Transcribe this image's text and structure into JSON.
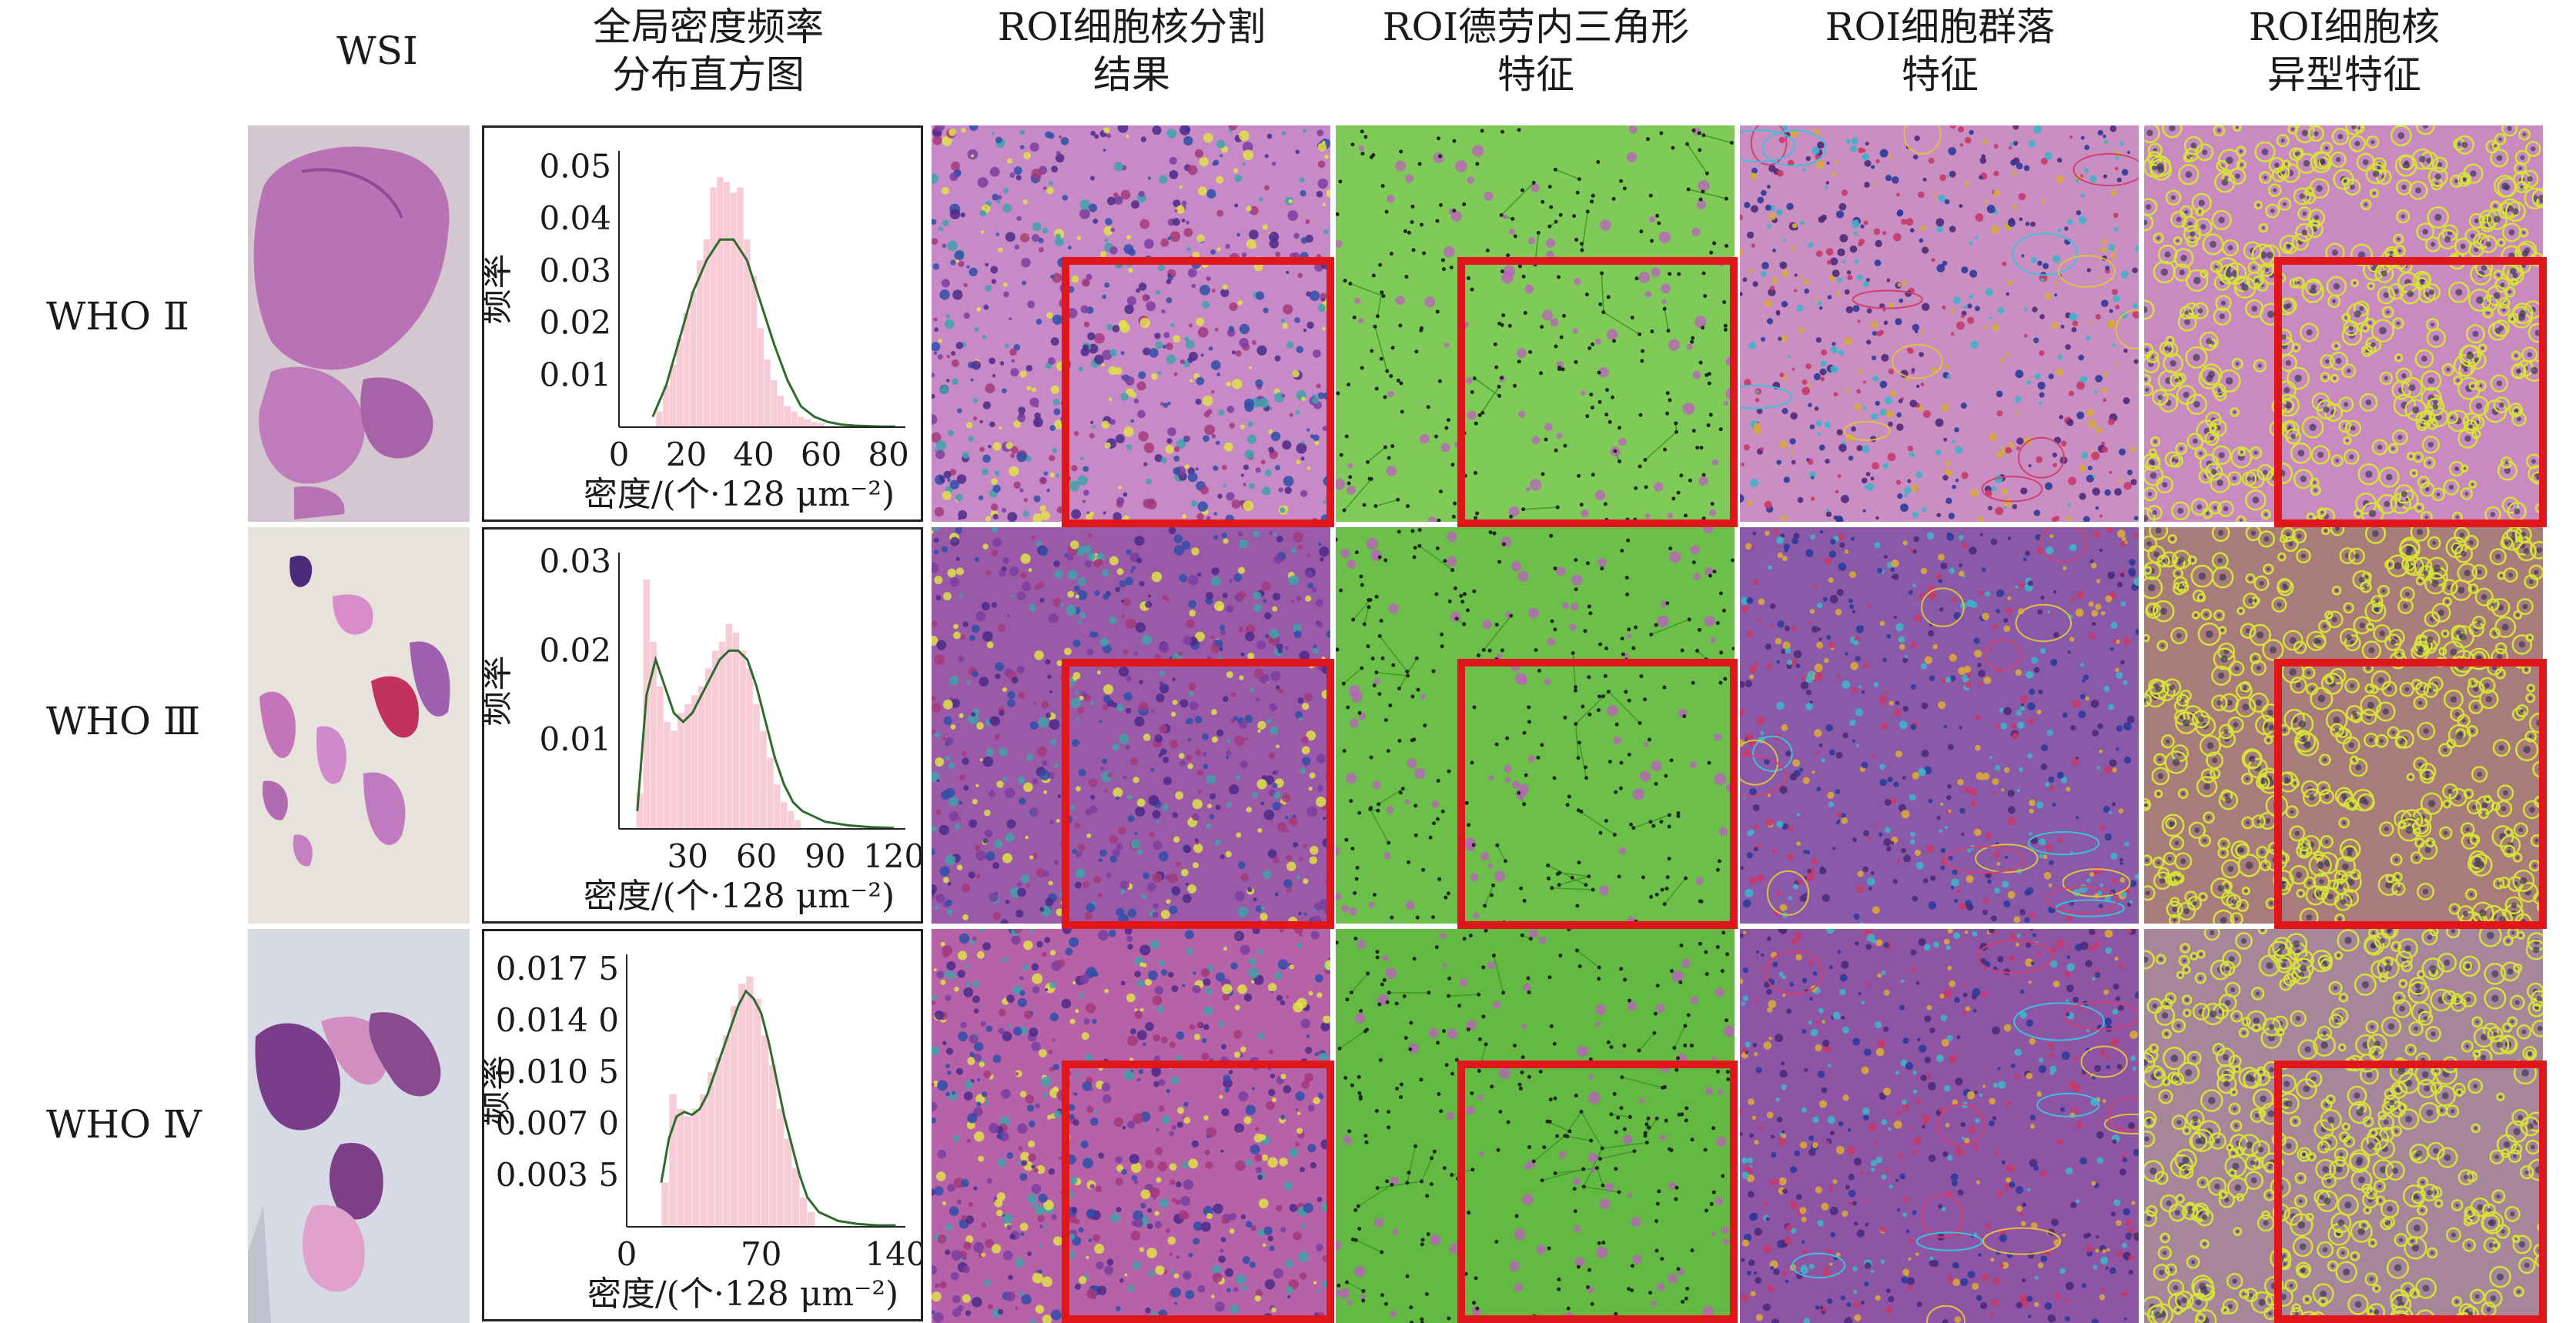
{
  "headers": {
    "wsi": [
      "WSI"
    ],
    "hist": [
      "全局密度频率",
      "分布直方图"
    ],
    "seg": [
      "ROI细胞核分割",
      "结果"
    ],
    "delaunay": [
      "ROI德劳内三角形",
      "特征"
    ],
    "community": [
      "ROI细胞群落",
      "特征"
    ],
    "atypia": [
      "ROI细胞核",
      "异型特征"
    ]
  },
  "rows": [
    {
      "label": "WHO Ⅱ"
    },
    {
      "label": "WHO Ⅲ"
    },
    {
      "label": "WHO Ⅳ"
    }
  ],
  "colors": {
    "roi_box": "#e0161b",
    "hist_bar": "#f7c6d3",
    "kde_line": "#2e6b2e",
    "tissue_pink": "#c77bbf",
    "tissue_purple": "#8a4a9e",
    "delaunay_green": "#5cbf3c",
    "atypia_yellow": "#d6e23a"
  },
  "chart_data": [
    {
      "type": "bar",
      "row": "WHO Ⅱ",
      "title": "",
      "xlabel": "密度/(个·128 μm⁻²)",
      "ylabel": "频率",
      "xlim": [
        0,
        85
      ],
      "ylim": [
        0,
        0.053
      ],
      "x_ticks": [
        0,
        20,
        40,
        60,
        80
      ],
      "x_tick_labels": [
        "0",
        "20",
        "40",
        "60",
        "80"
      ],
      "y_ticks": [
        0.01,
        0.02,
        0.03,
        0.04,
        0.05
      ],
      "y_tick_labels": [
        "0.01",
        "0.02",
        "0.03",
        "0.04",
        "0.05"
      ],
      "bin_width": 2,
      "bins_x": [
        12,
        14,
        16,
        18,
        20,
        22,
        24,
        26,
        28,
        30,
        32,
        34,
        36,
        38,
        40,
        42,
        44,
        46,
        48,
        50,
        52,
        54,
        56,
        58,
        60
      ],
      "values": [
        0.003,
        0.008,
        0.012,
        0.017,
        0.022,
        0.026,
        0.032,
        0.036,
        0.046,
        0.048,
        0.047,
        0.045,
        0.046,
        0.036,
        0.029,
        0.019,
        0.013,
        0.009,
        0.006,
        0.004,
        0.003,
        0.002,
        0.0015,
        0.001,
        0.0008
      ],
      "kde_x": [
        10,
        14,
        18,
        22,
        26,
        30,
        34,
        38,
        42,
        46,
        50,
        54,
        58,
        62,
        66,
        70,
        74,
        78,
        82
      ],
      "kde_y": [
        0.002,
        0.008,
        0.017,
        0.026,
        0.032,
        0.036,
        0.036,
        0.032,
        0.024,
        0.016,
        0.009,
        0.004,
        0.002,
        0.001,
        0.0005,
        0.0003,
        0.0002,
        0.0001,
        0.0001
      ]
    },
    {
      "type": "bar",
      "row": "WHO Ⅲ",
      "title": "",
      "xlabel": "密度/(个·128 μm⁻²)",
      "ylabel": "频率",
      "xlim": [
        0,
        125
      ],
      "ylim": [
        0,
        0.031
      ],
      "x_ticks": [
        0,
        30,
        60,
        90,
        120
      ],
      "x_tick_labels": [
        "",
        "30",
        "60",
        "90",
        "120"
      ],
      "y_ticks": [
        0.01,
        0.02,
        0.03
      ],
      "y_tick_labels": [
        "0.01",
        "0.02",
        "0.03"
      ],
      "bin_width": 3,
      "bins_x": [
        9,
        12,
        15,
        18,
        21,
        24,
        27,
        30,
        33,
        36,
        39,
        42,
        45,
        48,
        51,
        54,
        57,
        60,
        63,
        66,
        69,
        72,
        75,
        78
      ],
      "values": [
        0.004,
        0.028,
        0.021,
        0.016,
        0.012,
        0.011,
        0.013,
        0.014,
        0.015,
        0.016,
        0.018,
        0.02,
        0.021,
        0.023,
        0.022,
        0.02,
        0.018,
        0.014,
        0.011,
        0.008,
        0.005,
        0.003,
        0.002,
        0.001
      ],
      "kde_x": [
        8,
        12,
        16,
        20,
        24,
        28,
        32,
        36,
        40,
        44,
        48,
        52,
        56,
        60,
        64,
        68,
        72,
        76,
        80,
        90,
        100,
        110,
        120
      ],
      "kde_y": [
        0.002,
        0.015,
        0.019,
        0.016,
        0.013,
        0.012,
        0.013,
        0.015,
        0.017,
        0.019,
        0.02,
        0.02,
        0.019,
        0.016,
        0.012,
        0.008,
        0.005,
        0.003,
        0.002,
        0.0008,
        0.0004,
        0.0002,
        0.0001
      ]
    },
    {
      "type": "bar",
      "row": "WHO Ⅳ",
      "title": "",
      "xlabel": "密度/(个·128 μm⁻²)",
      "ylabel": "频率",
      "xlim": [
        0,
        145
      ],
      "ylim": [
        0,
        0.0185
      ],
      "x_ticks": [
        0,
        70,
        140
      ],
      "x_tick_labels": [
        "0",
        "70",
        "140"
      ],
      "y_ticks": [
        0.0035,
        0.007,
        0.0105,
        0.014,
        0.0175
      ],
      "y_tick_labels": [
        "0.003 5",
        "0.007 0",
        "0.010 5",
        "0.014 0",
        "0.017 5"
      ],
      "bin_width": 4,
      "bins_x": [
        20,
        24,
        28,
        32,
        36,
        40,
        44,
        48,
        52,
        56,
        60,
        64,
        68,
        72,
        76,
        80,
        84,
        88,
        92,
        96
      ],
      "values": [
        0.003,
        0.009,
        0.008,
        0.0075,
        0.008,
        0.009,
        0.0105,
        0.0115,
        0.013,
        0.015,
        0.0165,
        0.017,
        0.0155,
        0.013,
        0.011,
        0.008,
        0.006,
        0.004,
        0.002,
        0.001
      ],
      "kde_x": [
        18,
        22,
        26,
        30,
        34,
        38,
        42,
        46,
        50,
        54,
        58,
        62,
        66,
        70,
        74,
        78,
        82,
        86,
        90,
        94,
        100,
        110,
        120,
        130,
        140
      ],
      "kde_y": [
        0.003,
        0.006,
        0.0075,
        0.0078,
        0.0076,
        0.008,
        0.009,
        0.0105,
        0.012,
        0.0135,
        0.015,
        0.016,
        0.0155,
        0.0145,
        0.0125,
        0.01,
        0.0075,
        0.0055,
        0.0035,
        0.002,
        0.001,
        0.0004,
        0.0002,
        0.0001,
        0.0001
      ]
    }
  ]
}
